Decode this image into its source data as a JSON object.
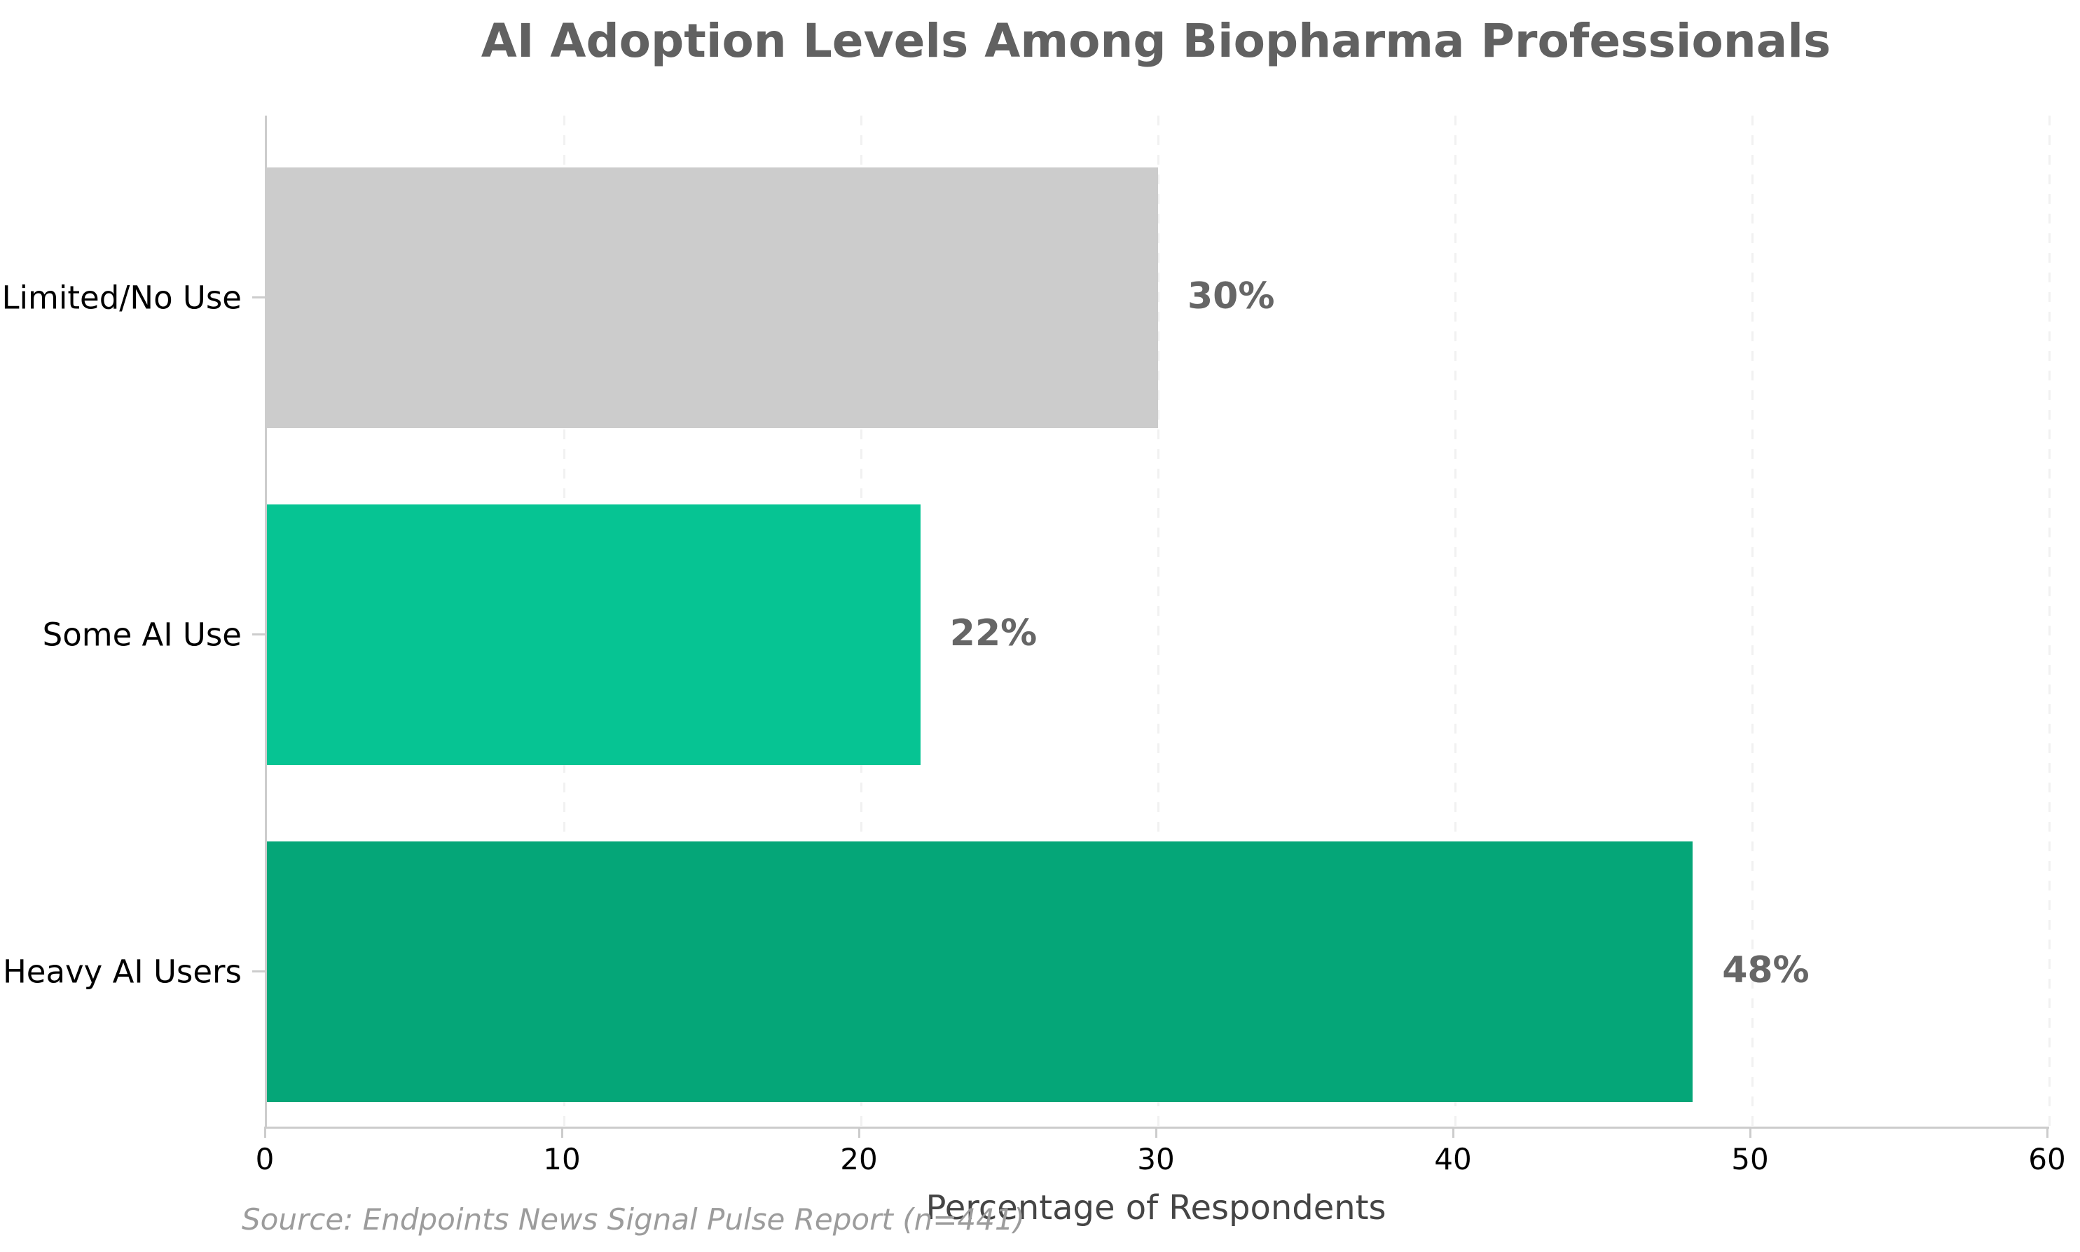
{
  "chart_data": {
    "type": "bar",
    "orientation": "horizontal",
    "title": "AI Adoption Levels Among Biopharma Professionals",
    "categories": [
      "Limited/No Use",
      "Some AI Use",
      "Heavy AI Users"
    ],
    "values": [
      30,
      22,
      48
    ],
    "value_labels": [
      "30%",
      "22%",
      "48%"
    ],
    "bar_colors": [
      "#cccccc",
      "#06c493",
      "#05a678"
    ],
    "xlabel": "Percentage of Respondents",
    "ylabel": "",
    "xlim": [
      0,
      60
    ],
    "xticks": [
      0,
      10,
      20,
      30,
      40,
      50,
      60
    ],
    "grid": {
      "axis": "x",
      "style": "dashed",
      "color": "#f1f1f1"
    },
    "legend": "none",
    "source_note": "Source: Endpoints News Signal Pulse Report (n=441)",
    "colors": {
      "title": "#616161",
      "value_label": "#666666",
      "category_label": "#000000",
      "tick_label": "#000000",
      "axis_label": "#454545",
      "source": "#9c9c9c",
      "spine": "#cccccc"
    }
  }
}
